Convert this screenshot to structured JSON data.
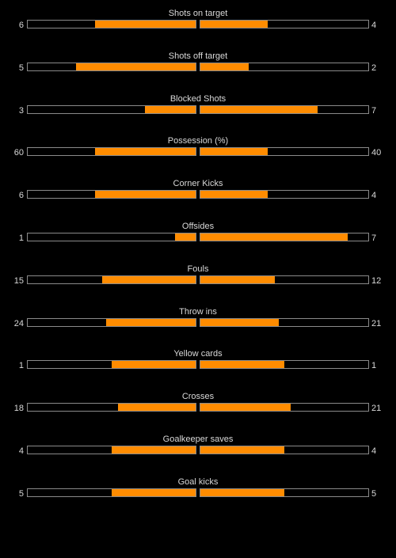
{
  "colors": {
    "background": "#000000",
    "bar_fill": "#ff8c00",
    "bar_border": "#8a8a8a",
    "text": "#d9d9d9"
  },
  "stats": [
    {
      "label": "Shots on target",
      "home": "6",
      "away": "4",
      "home_share": 0.6,
      "away_share": 0.4
    },
    {
      "label": "Shots off target",
      "home": "5",
      "away": "2",
      "home_share": 0.714,
      "away_share": 0.286
    },
    {
      "label": "Blocked Shots",
      "home": "3",
      "away": "7",
      "home_share": 0.3,
      "away_share": 0.7
    },
    {
      "label": "Possession (%)",
      "home": "60",
      "away": "40",
      "home_share": 0.6,
      "away_share": 0.4
    },
    {
      "label": "Corner Kicks",
      "home": "6",
      "away": "4",
      "home_share": 0.6,
      "away_share": 0.4
    },
    {
      "label": "Offsides",
      "home": "1",
      "away": "7",
      "home_share": 0.125,
      "away_share": 0.875
    },
    {
      "label": "Fouls",
      "home": "15",
      "away": "12",
      "home_share": 0.556,
      "away_share": 0.444
    },
    {
      "label": "Throw ins",
      "home": "24",
      "away": "21",
      "home_share": 0.533,
      "away_share": 0.467
    },
    {
      "label": "Yellow cards",
      "home": "1",
      "away": "1",
      "home_share": 0.5,
      "away_share": 0.5
    },
    {
      "label": "Crosses",
      "home": "18",
      "away": "21",
      "home_share": 0.462,
      "away_share": 0.538
    },
    {
      "label": "Goalkeeper saves",
      "home": "4",
      "away": "4",
      "home_share": 0.5,
      "away_share": 0.5
    },
    {
      "label": "Goal kicks",
      "home": "5",
      "away": "5",
      "home_share": 0.5,
      "away_share": 0.5
    }
  ]
}
